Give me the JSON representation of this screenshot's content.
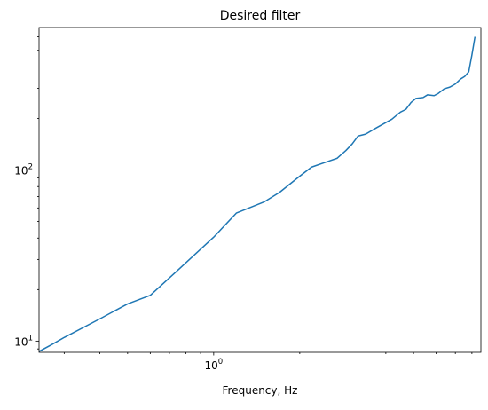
{
  "chart_data": {
    "type": "line",
    "title": "Desired filter",
    "xlabel": "Frequency, Hz",
    "ylabel": "",
    "xscale": "log",
    "yscale": "log",
    "xlim": [
      0.245,
      8.6
    ],
    "ylim": [
      8.6,
      680
    ],
    "grid": false,
    "x_tick_labels": [
      {
        "value": 1,
        "base": "10",
        "exp": "0"
      }
    ],
    "y_tick_labels": [
      {
        "value": 10,
        "base": "10",
        "exp": "1"
      },
      {
        "value": 100,
        "base": "10",
        "exp": "2"
      }
    ],
    "series": [
      {
        "color": "#1f77b4",
        "x": [
          0.245,
          0.27,
          0.3,
          0.4,
          0.5,
          0.6,
          0.75,
          1.0,
          1.2,
          1.5,
          1.7,
          2.0,
          2.2,
          2.5,
          2.7,
          2.9,
          3.05,
          3.2,
          3.4,
          3.7,
          4.2,
          4.5,
          4.7,
          4.9,
          5.1,
          5.4,
          5.6,
          5.9,
          6.1,
          6.4,
          6.7,
          7.0,
          7.3,
          7.55,
          7.8,
          8.0,
          8.2
        ],
        "y": [
          8.7,
          9.5,
          10.5,
          13.5,
          16.5,
          18.5,
          26,
          40.5,
          56,
          65,
          74,
          92,
          104,
          112,
          117,
          130,
          142,
          158,
          162,
          176,
          198,
          218,
          226,
          248,
          262,
          265,
          275,
          272,
          280,
          298,
          305,
          318,
          340,
          352,
          375,
          470,
          600
        ]
      }
    ]
  }
}
